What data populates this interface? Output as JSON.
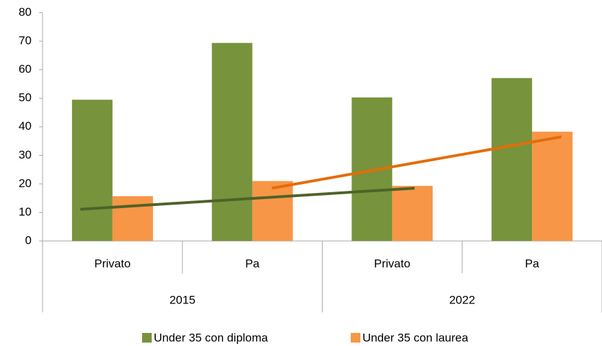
{
  "chart_data": {
    "type": "bar",
    "categories": [
      "Privato",
      "Pa",
      "Privato",
      "Pa"
    ],
    "groups": [
      "2015",
      "2022"
    ],
    "series": [
      {
        "name": "Under 35 con diploma",
        "color": "#77933c",
        "values": [
          49.5,
          69.4,
          50.3,
          57.1
        ]
      },
      {
        "name": "Under 35 con laurea",
        "color": "#f79646",
        "values": [
          15.7,
          21.0,
          19.3,
          38.3
        ]
      }
    ],
    "trendlines": [
      {
        "color": "#4f6228",
        "x": [
          -0.23,
          2.16
        ],
        "values": [
          11.1,
          18.5
        ]
      },
      {
        "color": "#e46c0a",
        "x": [
          1.14,
          3.21
        ],
        "values": [
          18.5,
          36.5
        ]
      }
    ],
    "ylim": [
      0,
      80
    ],
    "yticks": [
      0,
      10,
      20,
      30,
      40,
      50,
      60,
      70,
      80
    ],
    "grid": false,
    "legend": "bottom"
  }
}
